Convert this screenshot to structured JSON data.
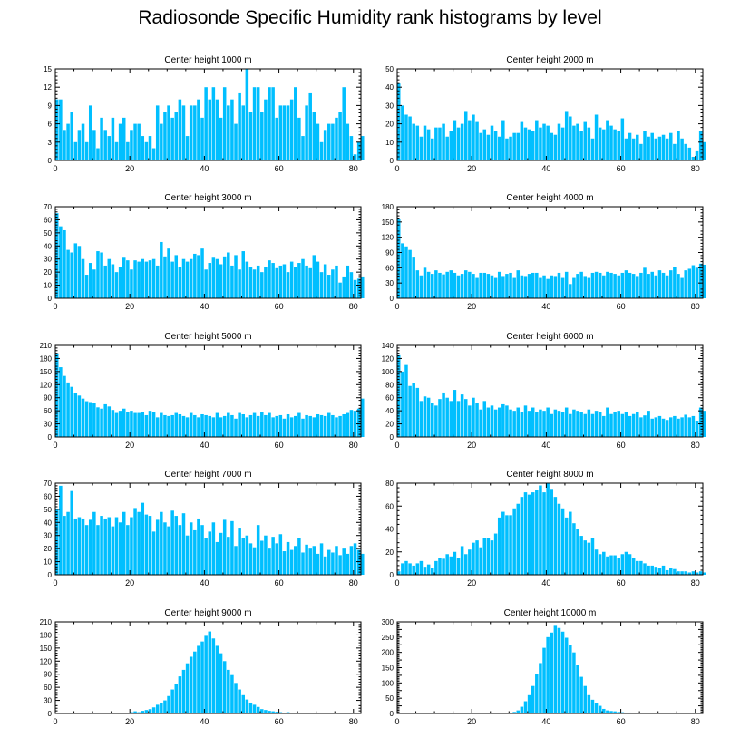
{
  "title": "Radiosonde Specific Humidity rank histograms by level",
  "colors": {
    "bar": "#00bfff",
    "axis": "#000000",
    "background": "#ffffff"
  },
  "chart_data": [
    {
      "type": "bar",
      "title": "Center height 1000 m",
      "xlim": [
        0,
        82
      ],
      "ylim": [
        0,
        15
      ],
      "xticks": [
        0,
        20,
        40,
        60,
        80
      ],
      "yticks": [
        0,
        3,
        6,
        9,
        12,
        15
      ],
      "values": [
        10,
        10,
        5,
        6,
        8,
        3,
        5,
        6,
        3,
        9,
        5,
        2,
        7,
        5,
        4,
        7,
        3,
        6,
        7,
        3,
        5,
        6,
        6,
        4,
        3,
        4,
        2,
        9,
        6,
        8,
        9,
        7,
        8,
        10,
        9,
        4,
        9,
        9,
        10,
        7,
        12,
        10,
        12,
        10,
        7,
        12,
        9,
        10,
        6,
        11,
        9,
        15,
        8,
        12,
        12,
        8,
        10,
        12,
        12,
        7,
        9,
        9,
        9,
        10,
        12,
        7,
        4,
        9,
        11,
        8,
        6,
        3,
        5,
        6,
        6,
        7,
        8,
        12,
        6,
        4,
        1,
        3,
        4
      ]
    },
    {
      "type": "bar",
      "title": "Center height 2000 m",
      "xlim": [
        0,
        82
      ],
      "ylim": [
        0,
        50
      ],
      "xticks": [
        0,
        20,
        40,
        60,
        80
      ],
      "yticks": [
        0,
        10,
        20,
        30,
        40,
        50
      ],
      "values": [
        42,
        30,
        25,
        24,
        20,
        19,
        13,
        19,
        17,
        12,
        18,
        18,
        20,
        13,
        16,
        22,
        18,
        20,
        27,
        22,
        25,
        21,
        15,
        17,
        14,
        19,
        16,
        13,
        22,
        12,
        13,
        15,
        15,
        21,
        18,
        17,
        16,
        22,
        18,
        20,
        19,
        15,
        14,
        20,
        18,
        27,
        24,
        19,
        20,
        16,
        21,
        18,
        12,
        25,
        18,
        17,
        22,
        19,
        17,
        16,
        23,
        12,
        15,
        12,
        14,
        9,
        16,
        13,
        15,
        12,
        13,
        14,
        12,
        15,
        9,
        16,
        12,
        9,
        7,
        2,
        5,
        16,
        10
      ]
    },
    {
      "type": "bar",
      "title": "Center height 3000 m",
      "xlim": [
        0,
        82
      ],
      "ylim": [
        0,
        70
      ],
      "xticks": [
        0,
        20,
        40,
        60,
        80
      ],
      "yticks": [
        0,
        10,
        20,
        30,
        40,
        50,
        60,
        70
      ],
      "values": [
        65,
        55,
        52,
        37,
        35,
        42,
        40,
        30,
        18,
        27,
        22,
        36,
        35,
        25,
        30,
        26,
        20,
        24,
        31,
        29,
        22,
        29,
        28,
        30,
        28,
        29,
        30,
        25,
        43,
        32,
        38,
        28,
        33,
        24,
        30,
        28,
        30,
        34,
        33,
        38,
        22,
        27,
        31,
        30,
        26,
        32,
        35,
        25,
        33,
        22,
        36,
        28,
        24,
        22,
        25,
        20,
        24,
        29,
        27,
        23,
        25,
        26,
        20,
        28,
        24,
        27,
        30,
        25,
        23,
        33,
        28,
        20,
        26,
        18,
        22,
        25,
        12,
        16,
        25,
        20,
        14,
        15,
        16
      ]
    },
    {
      "type": "bar",
      "title": "Center height 4000 m",
      "xlim": [
        0,
        82
      ],
      "ylim": [
        0,
        180
      ],
      "xticks": [
        0,
        20,
        40,
        60,
        80
      ],
      "yticks": [
        0,
        30,
        60,
        90,
        120,
        150,
        180
      ],
      "values": [
        155,
        108,
        102,
        95,
        80,
        55,
        45,
        60,
        52,
        48,
        55,
        50,
        47,
        52,
        55,
        50,
        45,
        48,
        55,
        52,
        48,
        40,
        50,
        50,
        48,
        45,
        40,
        52,
        42,
        48,
        50,
        40,
        55,
        45,
        42,
        48,
        50,
        50,
        40,
        45,
        38,
        45,
        42,
        50,
        40,
        52,
        28,
        40,
        48,
        52,
        42,
        40,
        50,
        52,
        50,
        45,
        52,
        50,
        48,
        45,
        50,
        55,
        50,
        48,
        42,
        50,
        60,
        48,
        52,
        45,
        55,
        50,
        45,
        55,
        62,
        48,
        40,
        55,
        58,
        65,
        60,
        68,
        66
      ]
    },
    {
      "type": "bar",
      "title": "Center height 5000 m",
      "xlim": [
        0,
        82
      ],
      "ylim": [
        0,
        210
      ],
      "xticks": [
        0,
        20,
        40,
        60,
        80
      ],
      "yticks": [
        0,
        30,
        60,
        90,
        120,
        150,
        180,
        210
      ],
      "values": [
        192,
        160,
        140,
        125,
        115,
        100,
        95,
        88,
        82,
        80,
        78,
        68,
        65,
        75,
        70,
        62,
        55,
        60,
        65,
        58,
        60,
        55,
        55,
        58,
        50,
        60,
        58,
        45,
        55,
        50,
        48,
        50,
        55,
        52,
        48,
        45,
        55,
        50,
        45,
        52,
        50,
        48,
        45,
        55,
        45,
        48,
        55,
        50,
        42,
        55,
        52,
        45,
        50,
        55,
        48,
        58,
        50,
        55,
        45,
        48,
        50,
        42,
        52,
        45,
        48,
        55,
        42,
        50,
        48,
        45,
        52,
        50,
        48,
        55,
        50,
        45,
        48,
        52,
        55,
        62,
        60,
        65,
        88
      ]
    },
    {
      "type": "bar",
      "title": "Center height 6000 m",
      "xlim": [
        0,
        82
      ],
      "ylim": [
        0,
        140
      ],
      "xticks": [
        0,
        20,
        40,
        60,
        80
      ],
      "yticks": [
        0,
        20,
        40,
        60,
        80,
        100,
        120,
        140
      ],
      "values": [
        125,
        100,
        110,
        78,
        82,
        75,
        55,
        62,
        60,
        52,
        48,
        58,
        68,
        60,
        55,
        72,
        55,
        65,
        58,
        48,
        60,
        52,
        42,
        55,
        45,
        48,
        42,
        45,
        50,
        48,
        42,
        40,
        45,
        38,
        48,
        40,
        45,
        38,
        42,
        40,
        45,
        35,
        42,
        40,
        38,
        45,
        35,
        42,
        40,
        38,
        35,
        42,
        35,
        40,
        38,
        32,
        45,
        35,
        38,
        40,
        35,
        38,
        32,
        35,
        38,
        30,
        33,
        40,
        28,
        30,
        32,
        28,
        26,
        30,
        32,
        28,
        30,
        34,
        30,
        32,
        25,
        45,
        40
      ]
    },
    {
      "type": "bar",
      "title": "Center height 7000 m",
      "xlim": [
        0,
        82
      ],
      "ylim": [
        0,
        70
      ],
      "xticks": [
        0,
        20,
        40,
        60,
        80
      ],
      "yticks": [
        0,
        10,
        20,
        30,
        40,
        50,
        60,
        70
      ],
      "values": [
        50,
        68,
        45,
        48,
        64,
        43,
        44,
        43,
        38,
        42,
        48,
        38,
        45,
        43,
        44,
        37,
        44,
        40,
        48,
        38,
        44,
        51,
        48,
        55,
        46,
        45,
        33,
        42,
        48,
        40,
        37,
        49,
        45,
        38,
        47,
        30,
        40,
        34,
        43,
        38,
        28,
        33,
        40,
        25,
        32,
        42,
        29,
        41,
        22,
        36,
        28,
        30,
        24,
        21,
        38,
        26,
        30,
        20,
        29,
        24,
        31,
        18,
        25,
        19,
        22,
        28,
        17,
        23,
        20,
        22,
        16,
        24,
        14,
        19,
        17,
        22,
        15,
        20,
        16,
        22,
        24,
        19,
        16
      ]
    },
    {
      "type": "bar",
      "title": "Center height 8000 m",
      "xlim": [
        0,
        82
      ],
      "ylim": [
        0,
        80
      ],
      "xticks": [
        0,
        20,
        40,
        60,
        80
      ],
      "yticks": [
        0,
        20,
        40,
        60,
        80
      ],
      "values": [
        3,
        10,
        12,
        10,
        8,
        10,
        12,
        7,
        9,
        6,
        12,
        15,
        14,
        18,
        16,
        20,
        15,
        25,
        18,
        22,
        28,
        30,
        24,
        32,
        32,
        30,
        36,
        50,
        55,
        52,
        52,
        58,
        62,
        68,
        72,
        70,
        72,
        74,
        78,
        72,
        80,
        75,
        68,
        62,
        58,
        50,
        55,
        45,
        40,
        34,
        30,
        28,
        32,
        22,
        18,
        20,
        16,
        17,
        17,
        15,
        18,
        20,
        18,
        15,
        12,
        12,
        10,
        8,
        8,
        7,
        6,
        8,
        4,
        6,
        5,
        3,
        3,
        3,
        2,
        3,
        2,
        3,
        2
      ]
    },
    {
      "type": "bar",
      "title": "Center height 9000 m",
      "xlim": [
        0,
        82
      ],
      "ylim": [
        0,
        210
      ],
      "xticks": [
        0,
        20,
        40,
        60,
        80
      ],
      "yticks": [
        0,
        30,
        60,
        90,
        120,
        150,
        180,
        210
      ],
      "values": [
        0,
        0,
        0,
        0,
        0,
        0,
        0,
        0,
        0,
        0,
        0,
        0,
        0,
        0,
        0,
        0,
        0,
        0,
        2,
        1,
        3,
        5,
        3,
        6,
        8,
        10,
        14,
        20,
        25,
        30,
        40,
        55,
        68,
        85,
        100,
        115,
        130,
        142,
        155,
        165,
        178,
        188,
        172,
        155,
        138,
        120,
        100,
        88,
        70,
        55,
        42,
        32,
        25,
        20,
        15,
        10,
        8,
        6,
        5,
        4,
        3,
        2,
        3,
        2,
        1,
        2,
        1,
        1,
        0,
        0,
        0,
        0,
        0,
        0,
        0,
        0,
        0,
        0,
        0,
        0,
        0,
        0,
        0
      ]
    },
    {
      "type": "bar",
      "title": "Center height 10000 m",
      "xlim": [
        0,
        82
      ],
      "ylim": [
        0,
        300
      ],
      "xticks": [
        0,
        20,
        40,
        60,
        80
      ],
      "yticks": [
        0,
        25,
        50,
        75,
        100,
        125,
        150,
        175,
        200,
        225,
        250,
        275,
        300
      ],
      "ytick_labels": [
        "0",
        "",
        "50",
        "",
        "100",
        "",
        "150",
        "",
        "200",
        "",
        "250",
        "",
        "300"
      ],
      "values": [
        0,
        0,
        0,
        0,
        0,
        0,
        0,
        0,
        0,
        0,
        0,
        0,
        0,
        0,
        0,
        0,
        0,
        0,
        0,
        0,
        0,
        0,
        0,
        0,
        0,
        0,
        0,
        1,
        1,
        2,
        3,
        5,
        10,
        22,
        40,
        60,
        90,
        130,
        165,
        215,
        250,
        265,
        290,
        280,
        268,
        248,
        225,
        200,
        160,
        120,
        90,
        60,
        45,
        35,
        25,
        15,
        10,
        8,
        7,
        5,
        4,
        3,
        3,
        2,
        2,
        1,
        1,
        1,
        0,
        0,
        0,
        0,
        0,
        0,
        0,
        0,
        0,
        0,
        0,
        0,
        0,
        0,
        0
      ]
    }
  ]
}
